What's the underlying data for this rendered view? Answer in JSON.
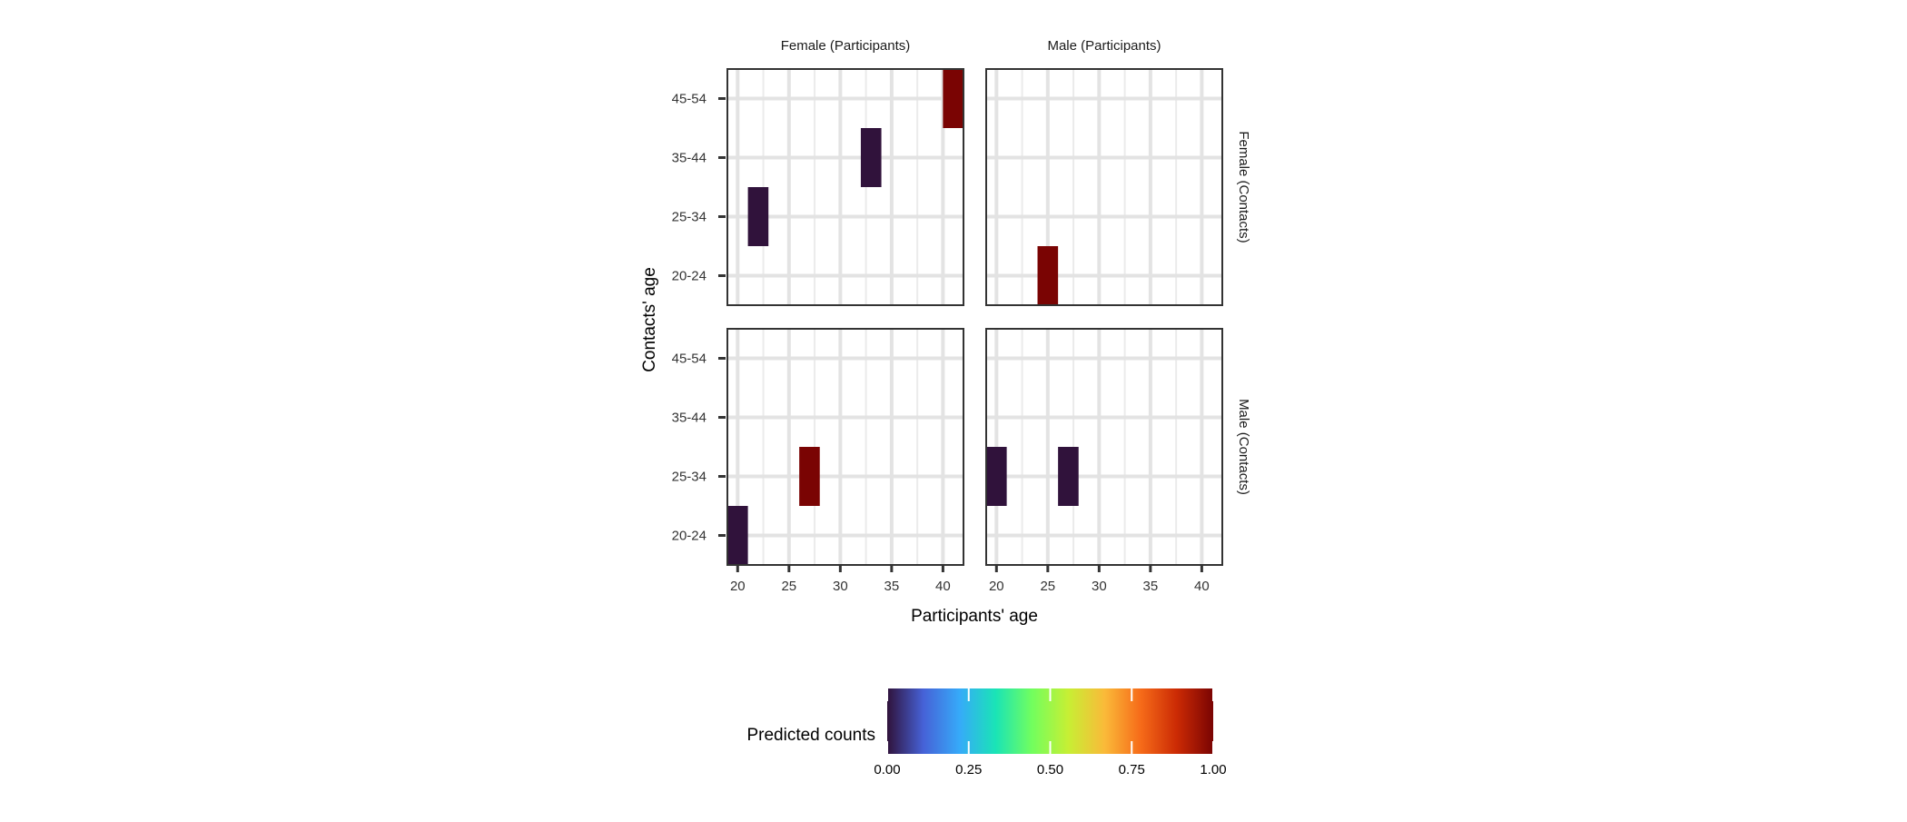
{
  "chart_data": {
    "type": "heatmap",
    "title": "",
    "xlabel": "Participants' age",
    "ylabel": "Contacts' age",
    "x_ticks": [
      20,
      25,
      30,
      35,
      40
    ],
    "xlim": [
      19,
      42
    ],
    "y_categories": [
      "20-24",
      "25-34",
      "35-44",
      "45-54"
    ],
    "column_facets": [
      "Female (Participants)",
      "Male (Participants)"
    ],
    "row_facets": [
      "Female (Contacts)",
      "Male (Contacts)"
    ],
    "grid": true,
    "legend": {
      "title": "Predicted counts",
      "placement": "bottom",
      "range": [
        0,
        1
      ],
      "ticks": [
        "0.00",
        "0.25",
        "0.50",
        "0.75",
        "1.00"
      ],
      "palette": [
        "#30123B",
        "#4662D7",
        "#36AAF9",
        "#1AE4B6",
        "#72FE5E",
        "#C7EF34",
        "#FABA39",
        "#F66B19",
        "#CB2A04",
        "#7A0403"
      ]
    },
    "panels": [
      {
        "column": "Female (Participants)",
        "row": "Female (Contacts)",
        "tiles": [
          {
            "x": 22,
            "y": "25-34",
            "value": 0.0
          },
          {
            "x": 33,
            "y": "35-44",
            "value": 0.0
          },
          {
            "x": 41,
            "y": "45-54",
            "value": 1.0
          }
        ]
      },
      {
        "column": "Male (Participants)",
        "row": "Female (Contacts)",
        "tiles": [
          {
            "x": 25,
            "y": "20-24",
            "value": 1.0
          }
        ]
      },
      {
        "column": "Female (Participants)",
        "row": "Male (Contacts)",
        "tiles": [
          {
            "x": 20,
            "y": "20-24",
            "value": 0.0
          },
          {
            "x": 27,
            "y": "25-34",
            "value": 1.0
          }
        ]
      },
      {
        "column": "Male (Participants)",
        "row": "Male (Contacts)",
        "tiles": [
          {
            "x": 20,
            "y": "25-34",
            "value": 0.0
          },
          {
            "x": 27,
            "y": "25-34",
            "value": 0.0
          }
        ]
      }
    ]
  }
}
